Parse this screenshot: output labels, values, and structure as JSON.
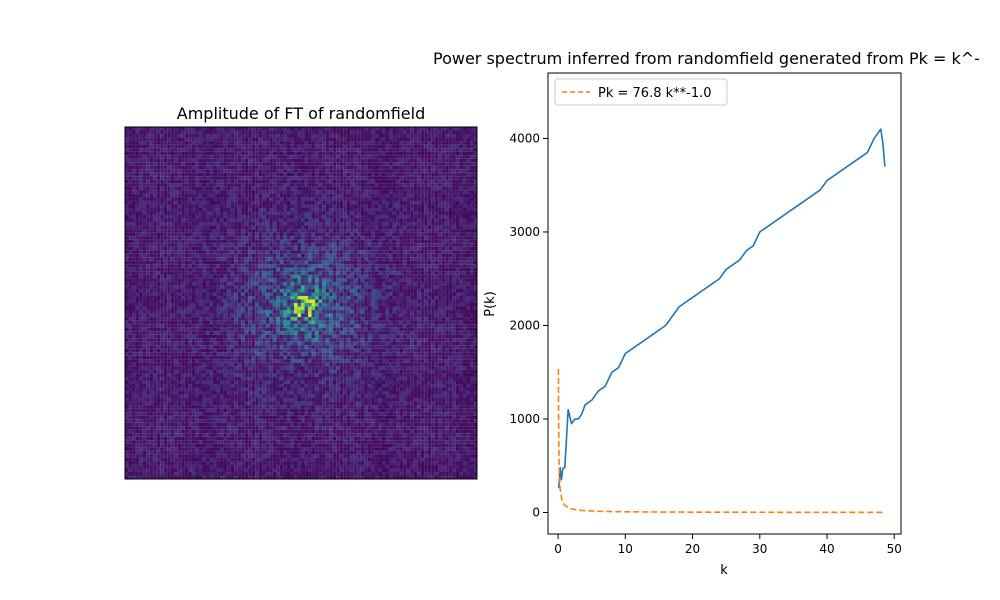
{
  "chart_data": [
    {
      "type": "heatmap",
      "title": "Amplitude of FT of randomfield",
      "grid_size": 100,
      "colormap": "viridis",
      "axes_ticks": "none",
      "description_of_values": "noise amplitude field, brightest near the center"
    },
    {
      "type": "line",
      "title": "Power spectrum inferred from randomfield generated from Pk = k^-",
      "xlabel": "k",
      "ylabel": "P(k)",
      "xlim": [
        -1.5,
        51
      ],
      "ylim": [
        -230,
        4700
      ],
      "xticks": [
        0,
        10,
        20,
        30,
        40,
        50
      ],
      "yticks": [
        0,
        1000,
        2000,
        3000,
        4000
      ],
      "grid": false,
      "legend": {
        "placement": "top-left",
        "entries": [
          "Pk = 76.8 k**-1.0"
        ]
      },
      "series": [
        {
          "name": "",
          "color": "#1f77b4",
          "style": "solid",
          "x": [
            0.1,
            0.3,
            0.5,
            0.7,
            1.0,
            1.5,
            2.0,
            2.5,
            3.0,
            3.5,
            4.0,
            5.0,
            6.0,
            7.0,
            8.0,
            9.0,
            10.0,
            11.0,
            12.0,
            13.0,
            14.0,
            15.0,
            16.0,
            17.0,
            18.0,
            19.0,
            20.0,
            21.0,
            22.0,
            23.0,
            24.0,
            25.0,
            26.0,
            27.0,
            28.0,
            29.0,
            30.0,
            31.0,
            32.0,
            33.0,
            34.0,
            35.0,
            36.0,
            37.0,
            38.0,
            39.0,
            40.0,
            41.0,
            42.0,
            43.0,
            44.0,
            45.0,
            46.0,
            47.0,
            47.5,
            48.0,
            48.3,
            48.6
          ],
          "y": [
            260,
            480,
            350,
            470,
            480,
            1100,
            950,
            1000,
            1000,
            1050,
            1150,
            1200,
            1300,
            1350,
            1500,
            1550,
            1700,
            1750,
            1800,
            1850,
            1900,
            1950,
            2000,
            2100,
            2200,
            2250,
            2300,
            2350,
            2400,
            2450,
            2500,
            2600,
            2650,
            2700,
            2800,
            2850,
            3000,
            3050,
            3100,
            3150,
            3200,
            3250,
            3300,
            3350,
            3400,
            3450,
            3550,
            3600,
            3650,
            3700,
            3750,
            3800,
            3850,
            4000,
            4050,
            4100,
            3950,
            3700
          ]
        },
        {
          "name": "Pk = 76.8 k**-1.0",
          "color": "#ff7f0e",
          "style": "dashed",
          "formula": "76.8 * k^-1.0",
          "x": [
            0.05,
            0.07,
            0.1,
            0.15,
            0.2,
            0.3,
            0.5,
            0.75,
            1,
            1.5,
            2,
            3,
            4,
            6,
            8,
            10,
            15,
            20,
            25,
            30,
            35,
            40,
            45,
            48.6
          ],
          "y": [
            1536,
            1097,
            768,
            512,
            384,
            256,
            153.6,
            102.4,
            76.8,
            51.2,
            38.4,
            25.6,
            19.2,
            12.8,
            9.6,
            7.7,
            5.1,
            3.8,
            3.1,
            2.6,
            2.2,
            1.9,
            1.7,
            1.6
          ]
        }
      ]
    }
  ]
}
